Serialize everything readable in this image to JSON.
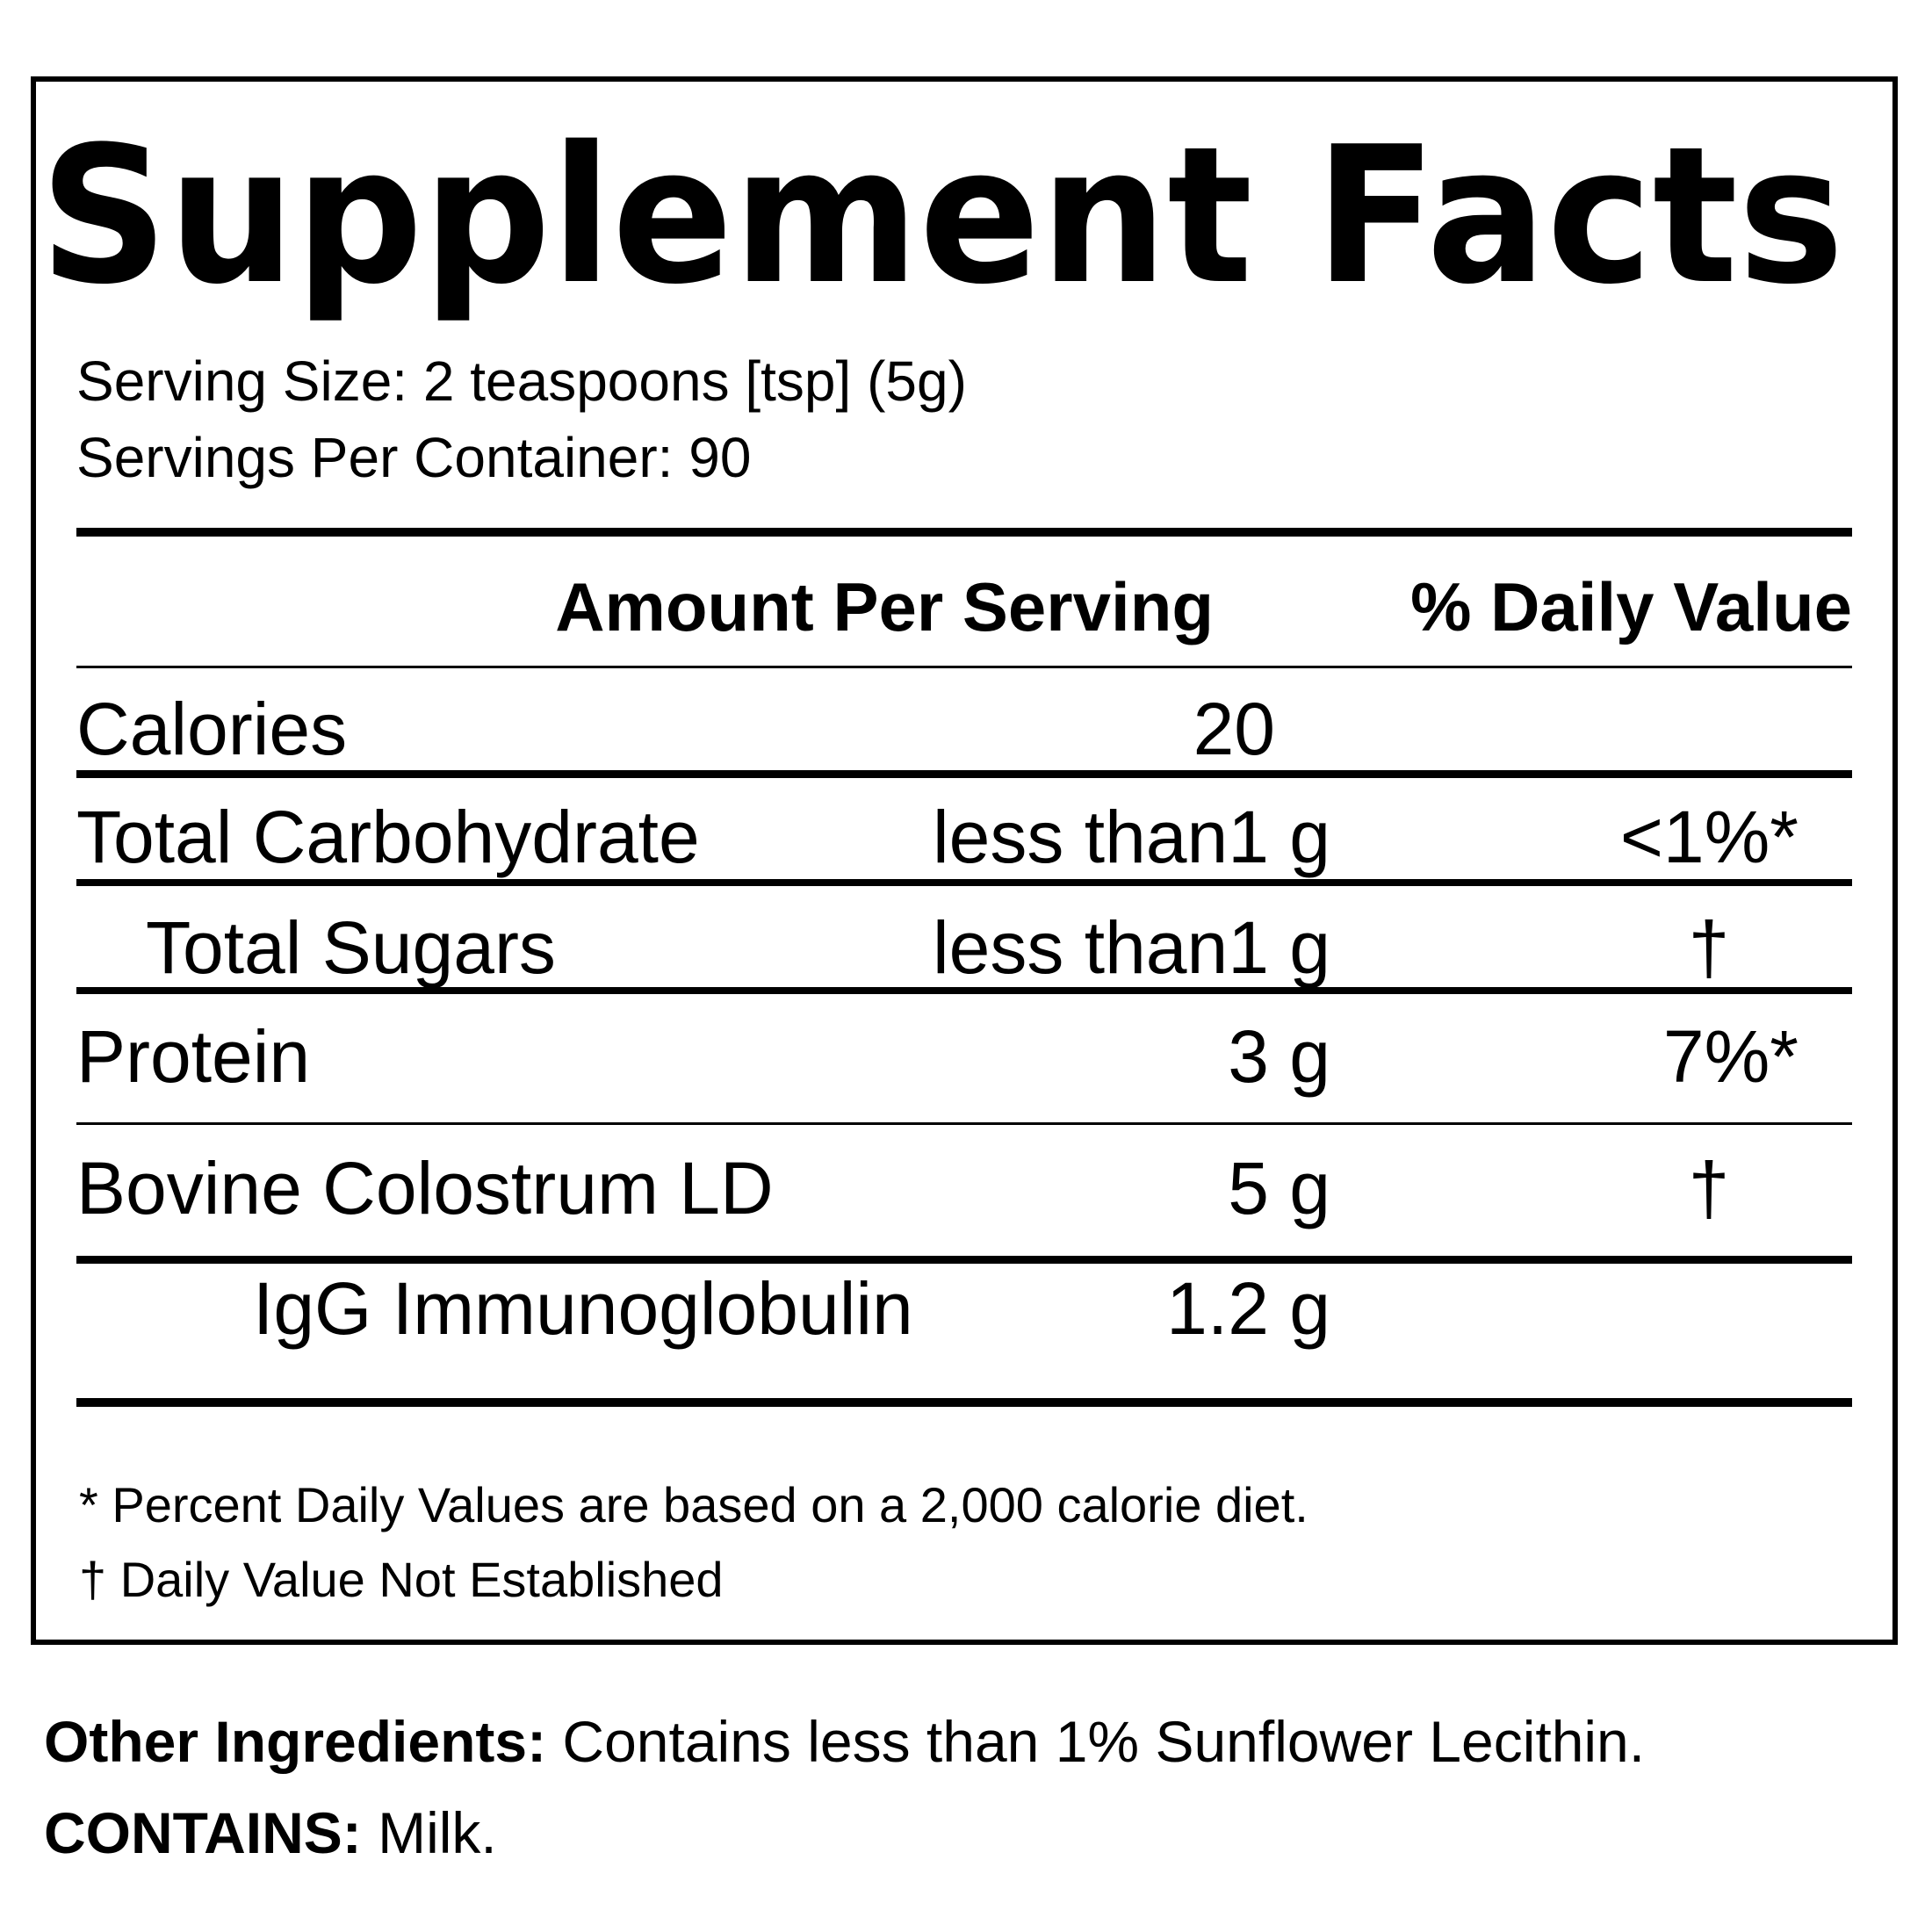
{
  "title": "Supplement Facts",
  "serving_size": "Serving Size: 2 teaspoons [tsp] (5g)",
  "servings_per_container": "Servings Per Container: 90",
  "header": {
    "amount": "Amount Per Serving",
    "daily_value": "% Daily Value"
  },
  "rows": [
    {
      "name": "Calories",
      "amount": "20"
    },
    {
      "name": "Total Carbohydrate",
      "amount": "less than1 g",
      "daily_value": "<1%*"
    },
    {
      "name": "Total Sugars",
      "amount": "less than1 g",
      "daily_value": "†"
    },
    {
      "name": "Protein",
      "amount": "3 g",
      "daily_value": "7%*"
    },
    {
      "name": "Bovine Colostrum LD",
      "amount": "5 g",
      "daily_value": "†"
    },
    {
      "name": "IgG Immunoglobulin",
      "amount": "1.2 g"
    }
  ],
  "footnotes": [
    "* Percent Daily Values are based on a 2,000 calorie diet.",
    "† Daily Value Not Established"
  ],
  "other_ingredients": {
    "label": "Other Ingredients:",
    "text": "Contains less than 1% Sunflower Lecithin."
  },
  "contains": {
    "label": "CONTAINS:",
    "text": "Milk."
  }
}
